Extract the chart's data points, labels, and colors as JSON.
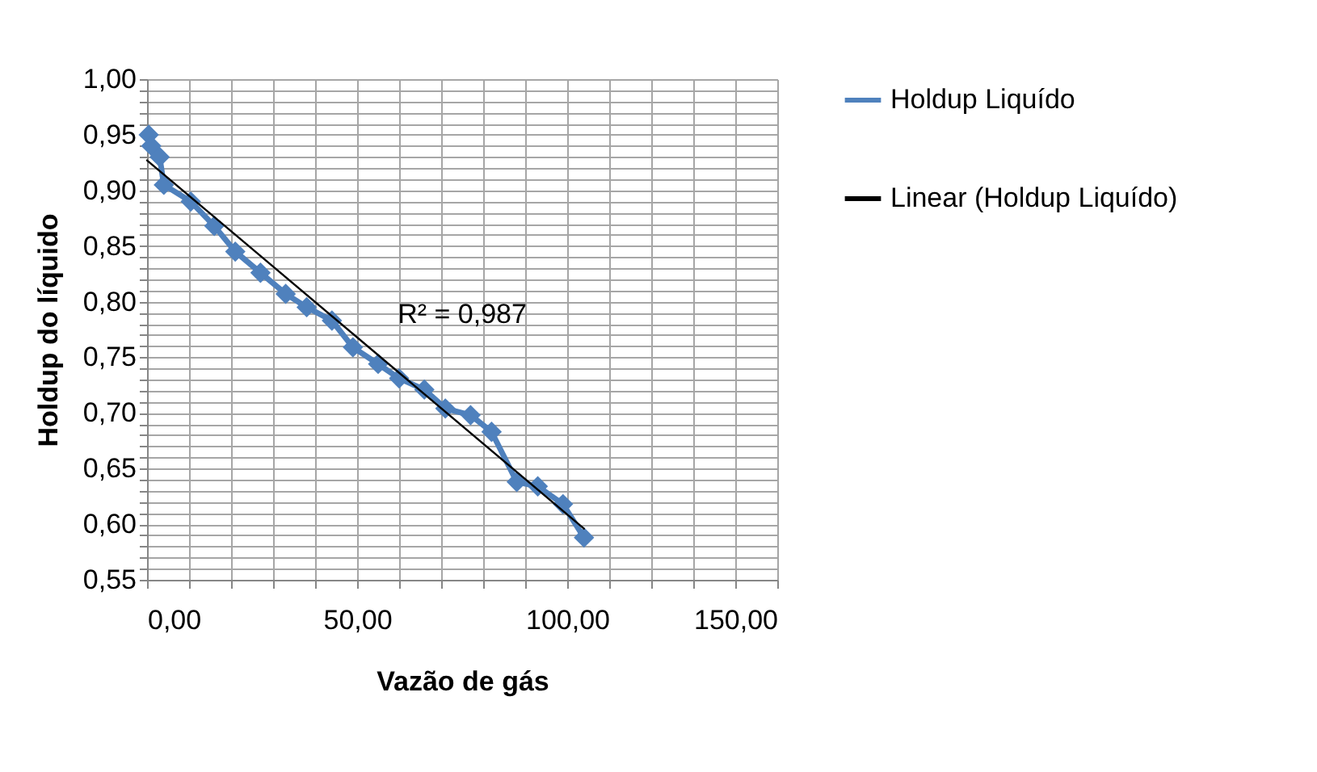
{
  "chart_data": {
    "type": "line",
    "xlabel": "Vazão de gás",
    "ylabel": "Holdup do líquido",
    "xlim": [
      0,
      150
    ],
    "ylim": [
      0.55,
      1.0
    ],
    "xticks": [
      {
        "value": 0,
        "label": "0,00"
      },
      {
        "value": 10,
        "label": null
      },
      {
        "value": 20,
        "label": null
      },
      {
        "value": 30,
        "label": null
      },
      {
        "value": 40,
        "label": null
      },
      {
        "value": 50,
        "label": "50,00"
      },
      {
        "value": 60,
        "label": null
      },
      {
        "value": 70,
        "label": null
      },
      {
        "value": 80,
        "label": null
      },
      {
        "value": 90,
        "label": null
      },
      {
        "value": 100,
        "label": "100,00"
      },
      {
        "value": 110,
        "label": null
      },
      {
        "value": 120,
        "label": null
      },
      {
        "value": 130,
        "label": null
      },
      {
        "value": 140,
        "label": null
      },
      {
        "value": 150,
        "label": "150,00"
      }
    ],
    "yticks": [
      {
        "value": 0.55,
        "label": "0,55"
      },
      {
        "value": 0.56,
        "label": null
      },
      {
        "value": 0.57,
        "label": null
      },
      {
        "value": 0.58,
        "label": null
      },
      {
        "value": 0.59,
        "label": null
      },
      {
        "value": 0.6,
        "label": "0,60"
      },
      {
        "value": 0.61,
        "label": null
      },
      {
        "value": 0.62,
        "label": null
      },
      {
        "value": 0.63,
        "label": null
      },
      {
        "value": 0.64,
        "label": null
      },
      {
        "value": 0.65,
        "label": "0,65"
      },
      {
        "value": 0.66,
        "label": null
      },
      {
        "value": 0.67,
        "label": null
      },
      {
        "value": 0.68,
        "label": null
      },
      {
        "value": 0.69,
        "label": null
      },
      {
        "value": 0.7,
        "label": "0,70"
      },
      {
        "value": 0.71,
        "label": null
      },
      {
        "value": 0.72,
        "label": null
      },
      {
        "value": 0.73,
        "label": null
      },
      {
        "value": 0.74,
        "label": null
      },
      {
        "value": 0.75,
        "label": "0,75"
      },
      {
        "value": 0.76,
        "label": null
      },
      {
        "value": 0.77,
        "label": null
      },
      {
        "value": 0.78,
        "label": null
      },
      {
        "value": 0.79,
        "label": null
      },
      {
        "value": 0.8,
        "label": "0,80"
      },
      {
        "value": 0.81,
        "label": null
      },
      {
        "value": 0.82,
        "label": null
      },
      {
        "value": 0.83,
        "label": null
      },
      {
        "value": 0.84,
        "label": null
      },
      {
        "value": 0.85,
        "label": "0,85"
      },
      {
        "value": 0.86,
        "label": null
      },
      {
        "value": 0.87,
        "label": null
      },
      {
        "value": 0.88,
        "label": null
      },
      {
        "value": 0.89,
        "label": null
      },
      {
        "value": 0.9,
        "label": "0,90"
      },
      {
        "value": 0.91,
        "label": null
      },
      {
        "value": 0.92,
        "label": null
      },
      {
        "value": 0.93,
        "label": null
      },
      {
        "value": 0.94,
        "label": null
      },
      {
        "value": 0.95,
        "label": "0,95"
      },
      {
        "value": 0.96,
        "label": null
      },
      {
        "value": 0.97,
        "label": null
      },
      {
        "value": 0.98,
        "label": null
      },
      {
        "value": 0.99,
        "label": null
      },
      {
        "value": 1.0,
        "label": "1,00"
      }
    ],
    "grid": true,
    "legend": "right",
    "annotations": [
      "R² = 0,987"
    ],
    "series": [
      {
        "name": "Holdup Liquído",
        "color": "#4f81bd",
        "marker": "diamond",
        "x": [
          0.4,
          1,
          3,
          4,
          10.4,
          16,
          21,
          27,
          33,
          38,
          44,
          49,
          55,
          60,
          66,
          71,
          77,
          82,
          88,
          93,
          99,
          104
        ],
        "values": [
          0.95,
          0.94,
          0.93,
          0.905,
          0.89,
          0.868,
          0.845,
          0.826,
          0.807,
          0.795,
          0.783,
          0.759,
          0.744,
          0.731,
          0.721,
          0.704,
          0.698,
          0.683,
          0.638,
          0.634,
          0.618,
          0.588
        ]
      },
      {
        "name": "Linear (Holdup Liquído)",
        "color": "#000000",
        "marker": "none",
        "x": [
          0,
          104
        ],
        "values": [
          0.927,
          0.596
        ]
      }
    ]
  }
}
